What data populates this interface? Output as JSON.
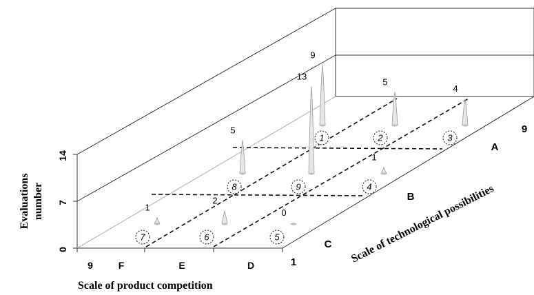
{
  "chart_data": {
    "type": "bar",
    "projection": "3d-perspective",
    "ylabel_line1": "Evaluations",
    "ylabel_line2": "number",
    "xlabel": "Scale of product competition",
    "zlabel": "Scale of technological possibilities",
    "y_ticks": [
      "0",
      "7",
      "14"
    ],
    "ylim": [
      0,
      14
    ],
    "x_ticks": [
      "9",
      "F",
      "E",
      "D",
      "1"
    ],
    "z_ticks": [
      "C",
      "B",
      "A",
      "9"
    ],
    "cells": [
      {
        "id": "1",
        "value": 9,
        "label": "9",
        "row": "A",
        "col": "F"
      },
      {
        "id": "2",
        "value": 5,
        "label": "5",
        "row": "A",
        "col": "E"
      },
      {
        "id": "3",
        "value": 4,
        "label": "4",
        "row": "A",
        "col": "D"
      },
      {
        "id": "8",
        "value": 5,
        "label": "5",
        "row": "B",
        "col": "F"
      },
      {
        "id": "9",
        "value": 13,
        "label": "13",
        "row": "B",
        "col": "E"
      },
      {
        "id": "4",
        "value": 1,
        "label": "1",
        "row": "B",
        "col": "D"
      },
      {
        "id": "7",
        "value": 1,
        "label": "1",
        "row": "C",
        "col": "F"
      },
      {
        "id": "6",
        "value": 2,
        "label": "2",
        "row": "C",
        "col": "E"
      },
      {
        "id": "5",
        "value": 0,
        "label": "0",
        "row": "C",
        "col": "D"
      }
    ]
  }
}
